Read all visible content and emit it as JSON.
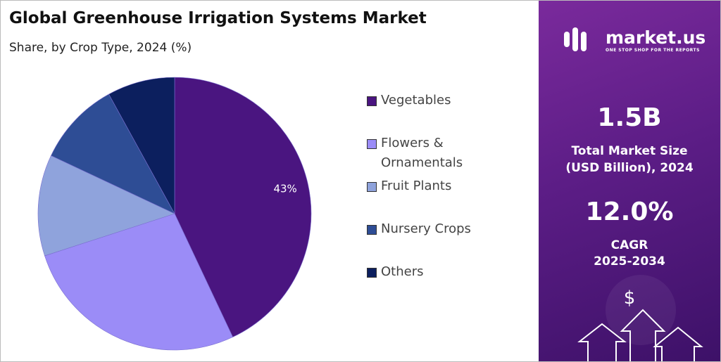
{
  "chart_data": {
    "type": "pie",
    "title": "Global Greenhouse Irrigation Systems Market",
    "subtitle": "Share, by Crop Type, 2024 (%)",
    "categories": [
      "Vegetables",
      "Flowers & Ornamentals",
      "Fruit Plants",
      "Nursery Crops",
      "Others"
    ],
    "values": [
      43,
      27,
      12,
      10,
      8
    ],
    "value_labels": [
      "43%",
      null,
      null,
      null,
      null
    ],
    "colors": [
      "#4a1580",
      "#9b8cf7",
      "#8fa3dc",
      "#2e4d95",
      "#0c1f5e"
    ]
  },
  "panel": {
    "brand": "market.us",
    "tagline": "ONE STOP SHOP FOR THE REPORTS",
    "market_size": "1.5B",
    "market_size_label_1": "Total Market Size",
    "market_size_label_2": "(USD Billion), 2024",
    "cagr": "12.0%",
    "cagr_label": "CAGR",
    "cagr_period": "2025-2034",
    "icon": "$"
  }
}
